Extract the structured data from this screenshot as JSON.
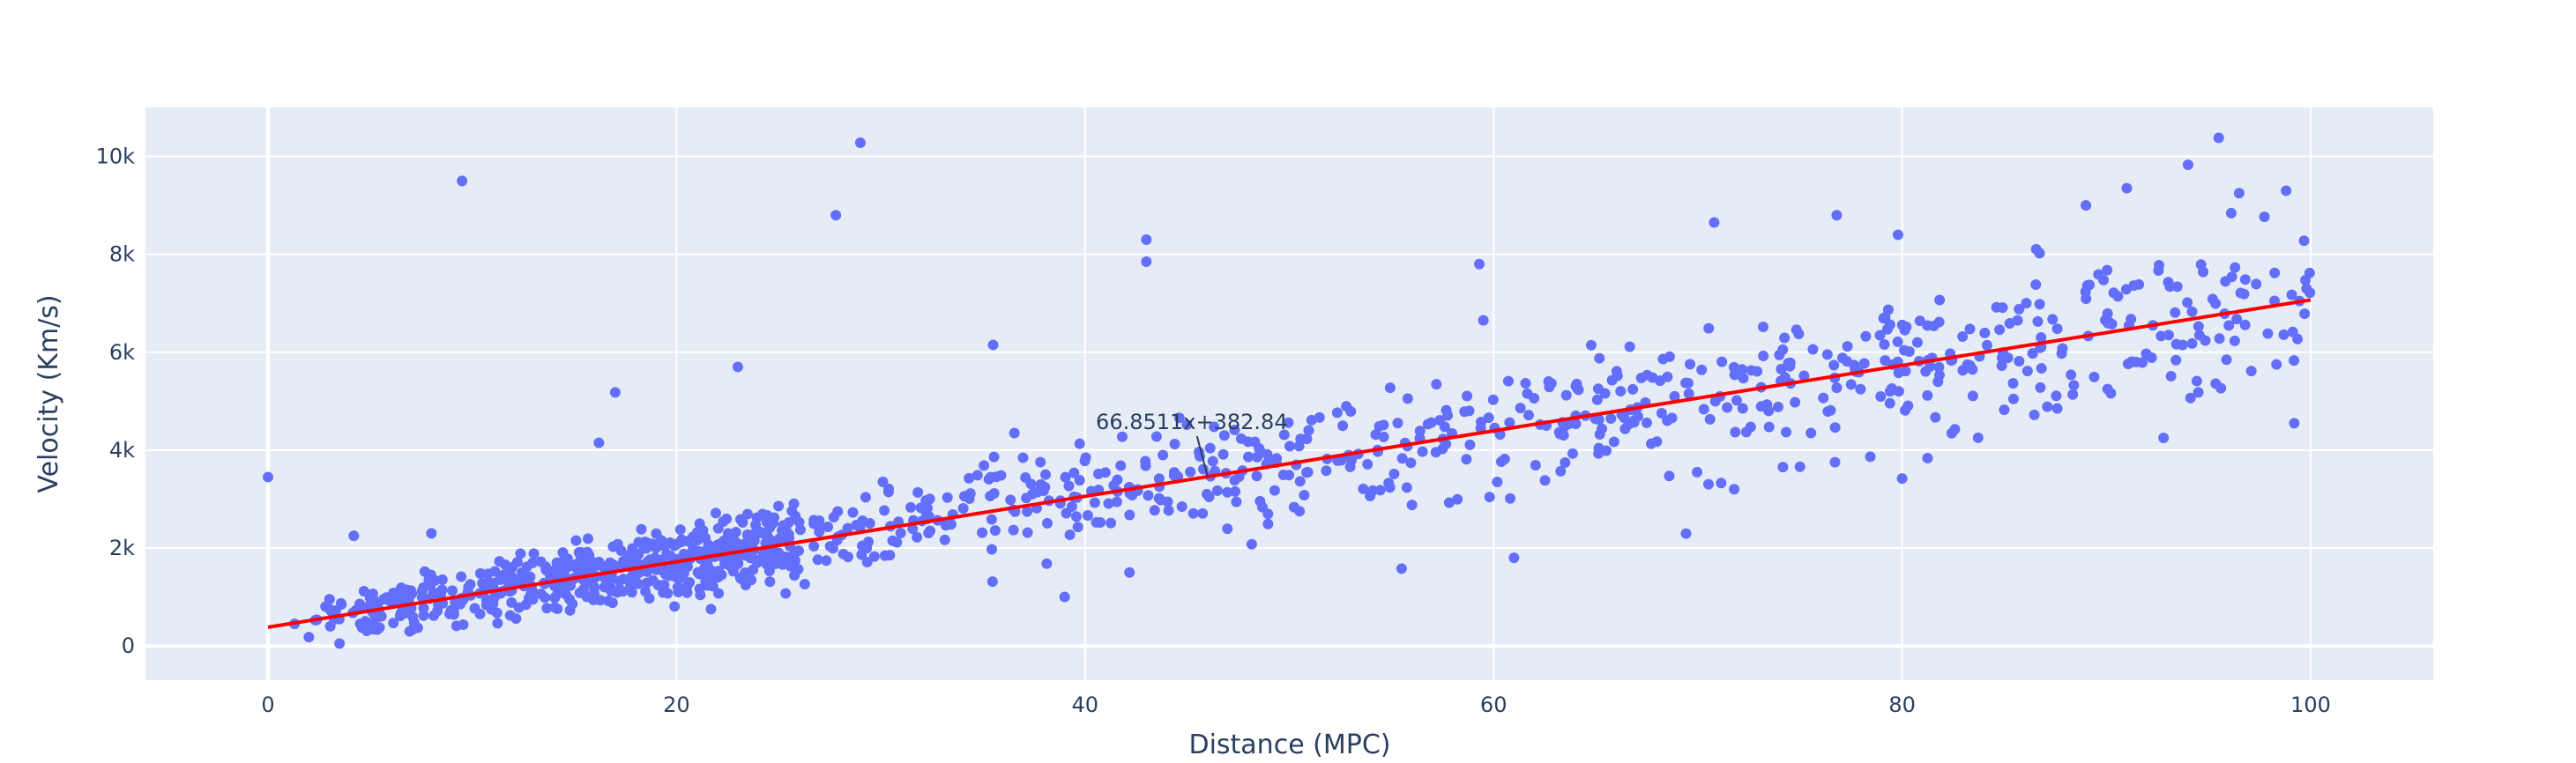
{
  "chart_data": {
    "type": "scatter",
    "title": "",
    "xlabel": "Distance (MPC)",
    "ylabel": "Velocity (Km/s)",
    "xlim": [
      -6,
      106
    ],
    "ylim": [
      -700,
      11000
    ],
    "x_ticks": [
      0,
      20,
      40,
      60,
      80,
      100
    ],
    "x_tick_labels": [
      "0",
      "20",
      "40",
      "60",
      "80",
      "100"
    ],
    "y_ticks": [
      0,
      2000,
      4000,
      6000,
      8000,
      10000
    ],
    "y_tick_labels": [
      "0",
      "2k",
      "4k",
      "6k",
      "8k",
      "10k"
    ],
    "grid": true,
    "background": "#e5ecf6",
    "marker_color": "#636efa",
    "fit_color": "#ff0000",
    "fit": {
      "slope": 66.8511,
      "intercept": 382.84,
      "x_range": [
        0,
        100
      ]
    },
    "annotation": {
      "text": "66.8511x+382.84",
      "x": 46,
      "y": 3457
    },
    "point_count": 1200,
    "noise_std": 650,
    "outliers": [
      {
        "x": 0,
        "y": 3450
      },
      {
        "x": 9.5,
        "y": 9500
      },
      {
        "x": 29,
        "y": 10280
      },
      {
        "x": 27.8,
        "y": 8800
      },
      {
        "x": 43,
        "y": 8300
      },
      {
        "x": 43,
        "y": 7850
      },
      {
        "x": 70.8,
        "y": 8650
      },
      {
        "x": 95.5,
        "y": 10380
      },
      {
        "x": 94,
        "y": 9830
      },
      {
        "x": 8,
        "y": 2300
      },
      {
        "x": 4.2,
        "y": 2250
      },
      {
        "x": 16.2,
        "y": 4150
      },
      {
        "x": 17,
        "y": 5180
      },
      {
        "x": 23,
        "y": 5700
      },
      {
        "x": 55.5,
        "y": 1580
      },
      {
        "x": 61,
        "y": 1800
      },
      {
        "x": 39,
        "y": 1000
      },
      {
        "x": 35.5,
        "y": 6150
      },
      {
        "x": 76.8,
        "y": 8800
      },
      {
        "x": 79.8,
        "y": 8400
      },
      {
        "x": 80,
        "y": 3420
      },
      {
        "x": 75,
        "y": 3660
      },
      {
        "x": 99.8,
        "y": 7300
      },
      {
        "x": 99.2,
        "y": 4550
      },
      {
        "x": 92.8,
        "y": 4250
      },
      {
        "x": 89,
        "y": 9000
      },
      {
        "x": 91,
        "y": 9350
      },
      {
        "x": 98.8,
        "y": 9300
      },
      {
        "x": 96.5,
        "y": 9250
      },
      {
        "x": 3.5,
        "y": 50
      },
      {
        "x": 2,
        "y": 180
      },
      {
        "x": 1.3,
        "y": 450
      },
      {
        "x": 59.3,
        "y": 7800
      },
      {
        "x": 59.5,
        "y": 6650
      }
    ]
  }
}
